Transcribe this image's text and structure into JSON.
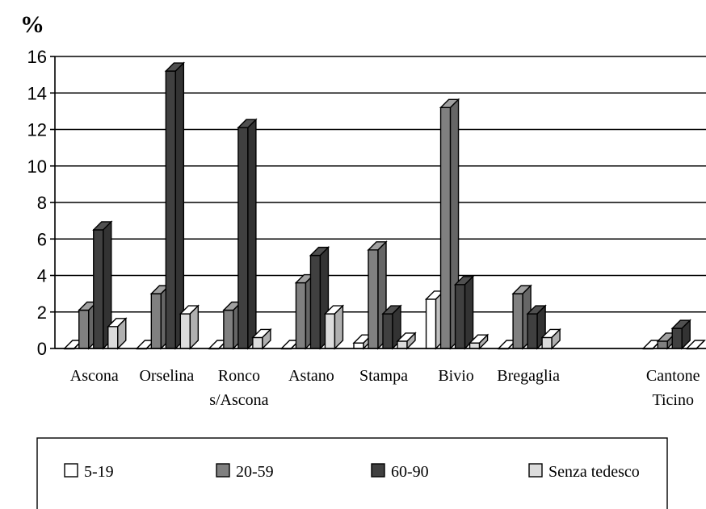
{
  "chart_data": {
    "type": "bar",
    "ylabel": "%",
    "ylim": [
      0,
      16
    ],
    "yticks": [
      "0",
      "2",
      "4",
      "6",
      "8",
      "10",
      "12",
      "14",
      "16"
    ],
    "categories": [
      [
        "Ascona"
      ],
      [
        "Orselina"
      ],
      [
        "Ronco",
        "s/Ascona"
      ],
      [
        "Astano"
      ],
      [
        "Stampa"
      ],
      [
        "Bivio"
      ],
      [
        "Bregaglia"
      ],
      [],
      [
        "Cantone",
        "Ticino"
      ]
    ],
    "series": [
      {
        "name": "5-19",
        "color": "#ffffff",
        "values": [
          0,
          0,
          0,
          0,
          0.3,
          2.7,
          0,
          null,
          0
        ]
      },
      {
        "name": "20-59",
        "color": "#808080",
        "values": [
          2.1,
          3.0,
          2.1,
          3.6,
          5.4,
          13.2,
          3.0,
          null,
          0.4
        ]
      },
      {
        "name": "60-90",
        "color": "#404040",
        "values": [
          6.5,
          15.2,
          12.1,
          5.1,
          1.9,
          3.5,
          1.9,
          null,
          1.1
        ]
      },
      {
        "name": "Senza tedesco",
        "color": "#dcdcdc",
        "values": [
          1.2,
          1.9,
          0.6,
          1.9,
          0.4,
          0.3,
          0.6,
          null,
          0
        ]
      }
    ],
    "grid": true,
    "legend_position": "bottom"
  }
}
